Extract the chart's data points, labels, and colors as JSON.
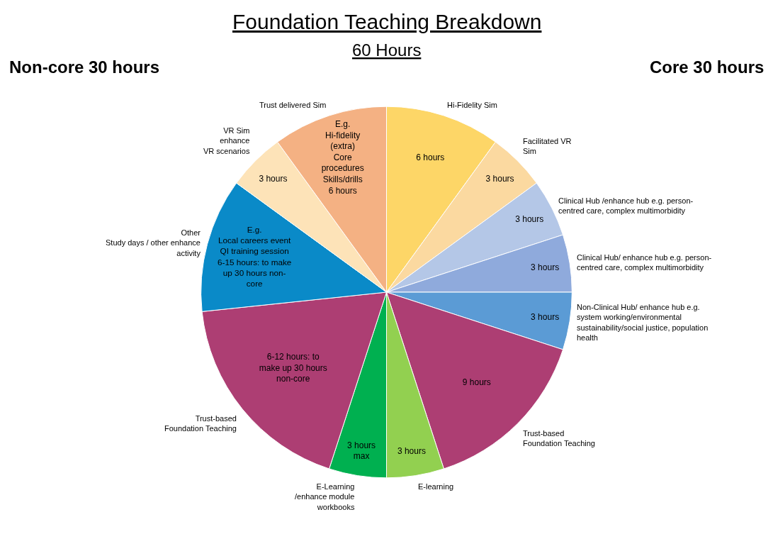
{
  "chart_data": {
    "type": "pie",
    "title": "Foundation Teaching Breakdown",
    "subtitle": "60 Hours",
    "categories": [
      "Hi-Fidelity Sim",
      "Facilitated VR\nSim",
      "Clinical Hub /enhance hub e.g. person-\ncentred care, complex multimorbidity",
      "Clinical Hub/ enhance hub e.g. person-\ncentred care, complex multimorbidity",
      "Non-Clinical Hub/ enhance hub e.g.\nsystem working/environmental\nsustainability/social justice, population\nhealth",
      "Trust-based\nFoundation Teaching",
      "E-learning",
      "E-Learning\n/enhance module\nworkbooks",
      "Trust-based\nFoundation Teaching",
      "Other\nStudy days / other enhance\nactivity",
      "VR Sim\nenhance\nVR scenarios",
      "Trust delivered Sim"
    ],
    "values": [
      6,
      3,
      3,
      3,
      3,
      9,
      3,
      3,
      11,
      7,
      3,
      6
    ],
    "value_labels": [
      "6 hours",
      "3 hours",
      "3 hours",
      "3 hours",
      "3 hours",
      "9 hours",
      "3 hours",
      "3 hours\nmax",
      "6-12 hours: to\nmake up 30 hours\nnon-core",
      "E.g.\nLocal careers event\nQI training session\n6-15 hours: to make\nup 30 hours non-\ncore",
      "3 hours",
      "E.g.\nHi-fidelity\n(extra)\nCore\nprocedures\nSkills/drills\n6 hours"
    ],
    "colors": [
      "#fdd667",
      "#fbd9a0",
      "#b4c7e7",
      "#8faadc",
      "#5b9bd5",
      "#ad3e73",
      "#92d050",
      "#00b050",
      "#ad3e73",
      "#0a8ac8",
      "#fde3b8",
      "#f4b183"
    ],
    "annotations": [
      "Non-core 30 hours",
      "Core 30 hours"
    ],
    "legend": false
  }
}
